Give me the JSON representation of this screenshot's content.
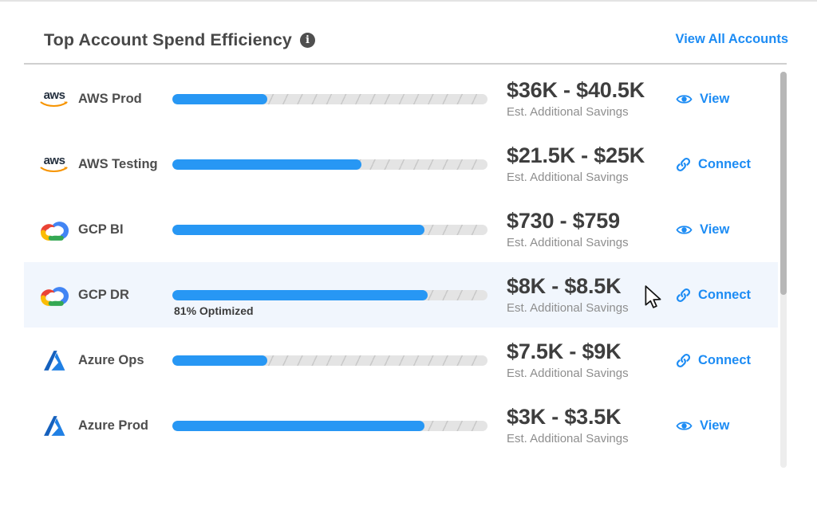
{
  "header": {
    "title": "Top Account Spend Efficiency",
    "info_icon": "info-icon",
    "view_all_label": "View All Accounts"
  },
  "labels": {
    "savings_caption": "Est. Additional Savings"
  },
  "colors": {
    "link_blue": "#1d8cf4",
    "bar_fill": "#2797f4",
    "bar_track": "#e4e4e4",
    "row_highlight": "#f1f6fd",
    "title_text": "#484848",
    "savings_text": "#3e3e3e",
    "caption_text": "#8e8e8e",
    "aws_orange": "#f79400",
    "gcp_red": "#EA4335",
    "gcp_yellow": "#FBBC05",
    "gcp_green": "#34A853",
    "gcp_blue": "#4285F4",
    "azure_blue": "#1b6fd0"
  },
  "accounts": [
    {
      "provider": "aws",
      "provider_icon": "aws-logo-icon",
      "name": "AWS Prod",
      "optimized_pct": 30,
      "savings_range": "$36K - $40.5K",
      "action": "View",
      "action_icon": "eye-icon",
      "highlighted": false
    },
    {
      "provider": "aws",
      "provider_icon": "aws-logo-icon",
      "name": "AWS Testing",
      "optimized_pct": 60,
      "savings_range": "$21.5K - $25K",
      "action": "Connect",
      "action_icon": "link-icon",
      "highlighted": false
    },
    {
      "provider": "gcp",
      "provider_icon": "gcp-logo-icon",
      "name": "GCP BI",
      "optimized_pct": 80,
      "savings_range": "$730 - $759",
      "action": "View",
      "action_icon": "eye-icon",
      "highlighted": false
    },
    {
      "provider": "gcp",
      "provider_icon": "gcp-logo-icon",
      "name": "GCP DR",
      "optimized_pct": 81,
      "savings_range": "$8K - $8.5K",
      "action": "Connect",
      "action_icon": "link-icon",
      "highlighted": true,
      "bar_label": "81% Optimized"
    },
    {
      "provider": "azure",
      "provider_icon": "azure-logo-icon",
      "name": "Azure Ops",
      "optimized_pct": 30,
      "savings_range": "$7.5K - $9K",
      "action": "Connect",
      "action_icon": "link-icon",
      "highlighted": false
    },
    {
      "provider": "azure",
      "provider_icon": "azure-logo-icon",
      "name": "Azure Prod",
      "optimized_pct": 80,
      "savings_range": "$3K - $3.5K",
      "action": "View",
      "action_icon": "eye-icon",
      "highlighted": false
    }
  ]
}
